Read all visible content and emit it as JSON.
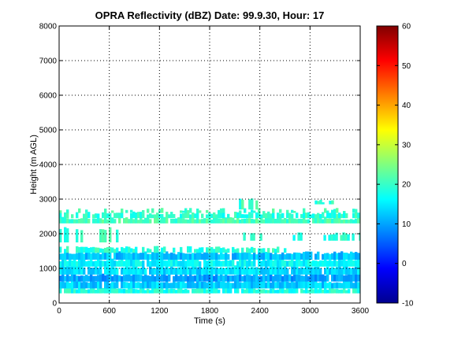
{
  "chart_data": {
    "type": "heatmap",
    "title": "OPRA Reflectivity (dBZ)  Date: 99.9.30, Hour: 17",
    "xlabel": "Time (s)",
    "ylabel": "Height (m AGL)",
    "xlim": [
      0,
      3600
    ],
    "ylim": [
      0,
      8000
    ],
    "xticks": [
      "0",
      "600",
      "1200",
      "1800",
      "2400",
      "3000",
      "3600"
    ],
    "yticks": [
      "0",
      "1000",
      "2000",
      "3000",
      "4000",
      "5000",
      "6000",
      "7000",
      "8000"
    ],
    "grid": true,
    "colorbar": {
      "range": [
        -10,
        60
      ],
      "ticks": [
        "-10",
        "0",
        "10",
        "20",
        "30",
        "40",
        "50",
        "60"
      ],
      "colormap": "jet"
    },
    "layers": [
      {
        "height_bottom": 280,
        "height_top": 420,
        "x_start": 0,
        "x_end": 3600,
        "dbz": 18,
        "coverage": "continuous"
      },
      {
        "height_bottom": 420,
        "height_top": 620,
        "x_start": 0,
        "x_end": 3600,
        "dbz": 13,
        "coverage": "continuous"
      },
      {
        "height_bottom": 620,
        "height_top": 820,
        "x_start": 0,
        "x_end": 3600,
        "dbz": 10,
        "coverage": "continuous"
      },
      {
        "height_bottom": 820,
        "height_top": 1050,
        "x_start": 0,
        "x_end": 3600,
        "dbz": 14,
        "coverage": "continuous"
      },
      {
        "height_bottom": 1050,
        "height_top": 1250,
        "x_start": 0,
        "x_end": 3600,
        "dbz": 16,
        "coverage": "continuous"
      },
      {
        "height_bottom": 1250,
        "height_top": 1450,
        "x_start": 0,
        "x_end": 3600,
        "dbz": 12,
        "coverage": "continuous"
      },
      {
        "height_bottom": 1450,
        "height_top": 1600,
        "x_start": 0,
        "x_end": 2700,
        "dbz": 19,
        "coverage": "patchy"
      },
      {
        "height_bottom": 1750,
        "height_top": 2150,
        "x_start": 0,
        "x_end": 700,
        "dbz": 20,
        "coverage": "sparse"
      },
      {
        "height_bottom": 1800,
        "height_top": 2000,
        "x_start": 2200,
        "x_end": 3600,
        "dbz": 19,
        "coverage": "sparse"
      },
      {
        "height_bottom": 2300,
        "height_top": 2450,
        "x_start": 0,
        "x_end": 3600,
        "dbz": 21,
        "coverage": "continuous"
      },
      {
        "height_bottom": 2450,
        "height_top": 2600,
        "x_start": 0,
        "x_end": 3600,
        "dbz": 19,
        "coverage": "patchy"
      },
      {
        "height_bottom": 2600,
        "height_top": 2700,
        "x_start": 0,
        "x_end": 3600,
        "dbz": 20,
        "coverage": "sparse"
      },
      {
        "height_bottom": 2700,
        "height_top": 3000,
        "x_start": 2150,
        "x_end": 2350,
        "dbz": 20,
        "coverage": "sparse"
      },
      {
        "height_bottom": 2850,
        "height_top": 2950,
        "x_start": 3000,
        "x_end": 3300,
        "dbz": 19,
        "coverage": "sparse"
      }
    ]
  }
}
